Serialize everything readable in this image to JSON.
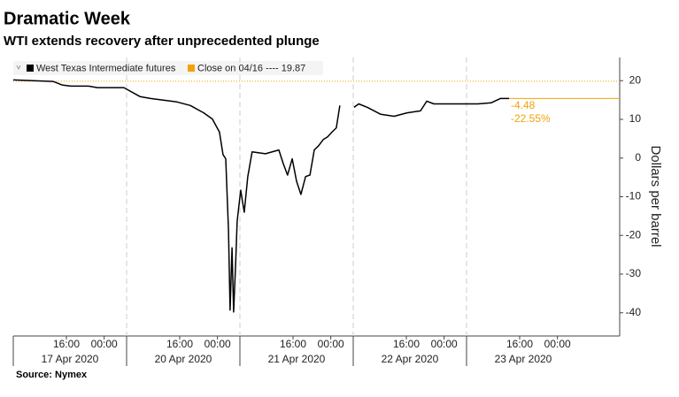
{
  "chart_data": {
    "type": "line",
    "title": "Dramatic Week",
    "subtitle": "WTI extends recovery after unprecedented plunge",
    "y_label": "Dollars per barrel",
    "source": "Source: Nymex",
    "legend": "top-left",
    "y_axis_side": "right",
    "days": [
      {
        "value": "2020-04-17",
        "label": "17 Apr 2020"
      },
      {
        "value": "2020-04-20",
        "label": "20 Apr 2020"
      },
      {
        "value": "2020-04-21",
        "label": "21 Apr 2020"
      },
      {
        "value": "2020-04-22",
        "label": "22 Apr 2020"
      },
      {
        "value": "2020-04-23",
        "label": "23 Apr 2020"
      }
    ],
    "xticks": [
      {
        "value": "2020-04-17 16:00",
        "label": "16:00"
      },
      {
        "value": "2020-04-18 00:00",
        "label": "00:00"
      },
      {
        "value": "2020-04-20 16:00",
        "label": "16:00"
      },
      {
        "value": "2020-04-21 00:00",
        "label": "00:00"
      },
      {
        "value": "2020-04-21 16:00",
        "label": "16:00"
      },
      {
        "value": "2020-04-22 00:00",
        "label": "00:00"
      },
      {
        "value": "2020-04-22 16:00",
        "label": "16:00"
      },
      {
        "value": "2020-04-23 00:00",
        "label": "00:00"
      },
      {
        "value": "2020-04-23 16:00",
        "label": "16:00"
      },
      {
        "value": "2020-04-24 00:00",
        "label": "00:00"
      }
    ],
    "x": [
      "2020-04-17 04:45",
      "2020-04-17 13:10",
      "2020-04-17 15:05",
      "2020-04-17 16:55",
      "2020-04-17 20:40",
      "2020-04-17 22:35",
      "2020-04-18 04:10",
      "2020-04-20 07:35",
      "2020-04-20 09:50",
      "2020-04-20 15:25",
      "2020-04-20 18:15",
      "2020-04-20 21:05",
      "2020-04-20 22:55",
      "2020-04-21 00:25",
      "2020-04-21 01:10",
      "2020-04-21 01:45",
      "2020-04-21 02:20",
      "2020-04-21 02:40",
      "2020-04-21 03:05",
      "2020-04-21 03:25",
      "2020-04-21 03:50",
      "2020-04-21 04:10",
      "2020-04-21 04:55",
      "2020-04-21 05:40",
      "2020-04-21 06:25",
      "2020-04-21 07:20",
      "2020-04-21 10:10",
      "2020-04-21 13:00",
      "2020-04-21 13:55",
      "2020-04-21 14:50",
      "2020-04-21 15:50",
      "2020-04-21 16:45",
      "2020-04-21 17:40",
      "2020-04-21 18:40",
      "2020-04-21 19:35",
      "2020-04-21 20:30",
      "2020-04-21 21:25",
      "2020-04-21 22:25",
      "2020-04-21 23:20",
      "2020-04-22 00:15",
      "2020-04-22 01:10",
      "2020-04-22 01:55",
      null,
      "2020-04-22 04:55",
      "2020-04-22 05:55",
      "2020-04-22 07:45",
      "2020-04-22 10:35",
      "2020-04-22 13:25",
      "2020-04-22 16:10",
      "2020-04-22 19:00",
      "2020-04-22 20:20",
      "2020-04-22 21:50",
      "2020-04-23 01:35",
      "2020-04-23 05:20",
      "2020-04-23 07:10",
      "2020-04-23 10:00",
      "2020-04-23 11:55",
      "2020-04-23 13:45"
    ],
    "series": [
      {
        "name": "West Texas Intermediate futures",
        "color": "#000000",
        "values": [
          20.2,
          19.8,
          18.9,
          18.6,
          18.6,
          18.2,
          18.2,
          15.9,
          15.4,
          14.5,
          13.6,
          11.7,
          10.1,
          6.7,
          0.9,
          -0.2,
          -18.6,
          -39.3,
          -23.2,
          -39.8,
          -27.8,
          -16.3,
          -8.3,
          -14,
          -4.8,
          1.6,
          1.1,
          2.1,
          -1.4,
          -4.4,
          -0.2,
          -6,
          -9.4,
          -4.8,
          -4.4,
          2.1,
          3.2,
          4.8,
          5.5,
          6.7,
          7.8,
          13.6,
          null,
          13.1,
          14,
          13.1,
          11.3,
          10.8,
          11.7,
          12.2,
          14.7,
          14,
          14,
          14,
          14,
          14.3,
          15.4,
          15.39
        ]
      }
    ],
    "reference": {
      "label": "Close on 04/16 ---- 19.87",
      "value": 19.87,
      "color": "#f0a30a"
    },
    "annotations": {
      "change": -4.48,
      "change_pct": {
        "value": -22.55,
        "label": "-22.55%"
      }
    },
    "ylim": [
      -46,
      26
    ],
    "yticks": [
      -40,
      -30,
      -20,
      -10,
      0,
      10,
      20
    ]
  }
}
